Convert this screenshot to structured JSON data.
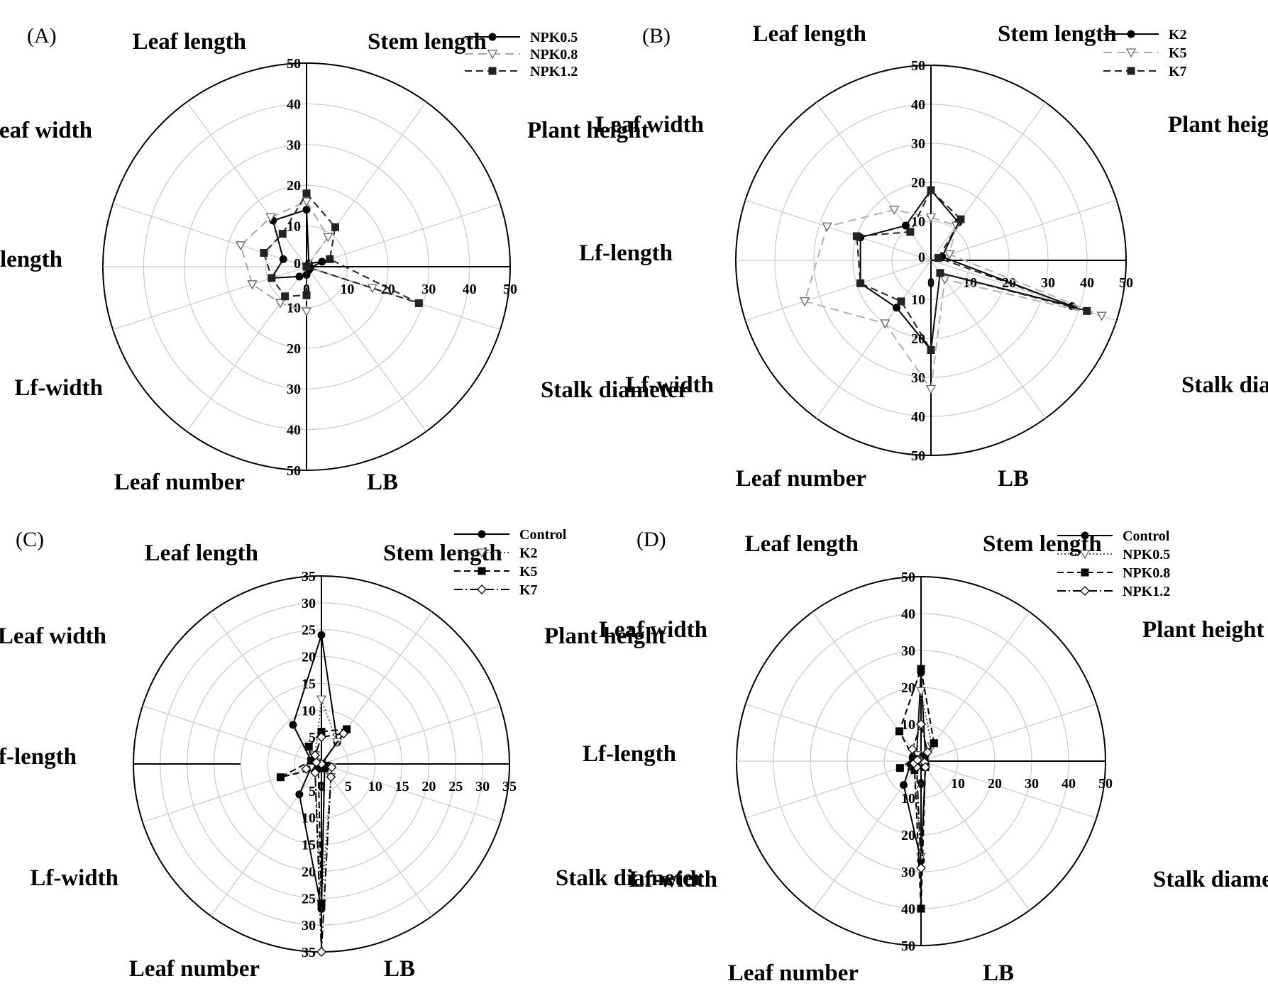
{
  "chart_data": [
    {
      "type": "radar",
      "panel_label": "(A)",
      "axes": [
        "Stem length",
        "Plant height",
        "",
        "Stalk diameter",
        "LB",
        "Leaf number",
        "Lf-width",
        "Lf-length",
        "Leaf width",
        "Leaf length"
      ],
      "tick_labels": [
        "0",
        "10",
        "20",
        "30",
        "40",
        "50"
      ],
      "max": 50,
      "legend": [
        "NPK0.5",
        "NPK0.8",
        "NPK1.2"
      ],
      "series": [
        {
          "name": "NPK0.5",
          "values": [
            14,
            1,
            4,
            1,
            1,
            2,
            3,
            9,
            6,
            14
          ]
        },
        {
          "name": "NPK0.8",
          "values": [
            16,
            9,
            0,
            17,
            0,
            11,
            11,
            14,
            17,
            15
          ]
        },
        {
          "name": "NPK1.2",
          "values": [
            18,
            12,
            6,
            29,
            0,
            7,
            9,
            9,
            11,
            10
          ]
        }
      ]
    },
    {
      "type": "radar",
      "panel_label": "(B)",
      "axes": [
        "Stem length",
        "Plant height",
        "",
        "Stalk diameter",
        "LB",
        "Leaf number",
        "Lf-width",
        "Lf-length",
        "Leaf width",
        "Leaf length"
      ],
      "tick_labels": [
        "0",
        "10",
        "20",
        "30",
        "40",
        "50"
      ],
      "max": 50,
      "legend": [
        "K2",
        "K5",
        "K7"
      ],
      "series": [
        {
          "name": "K2",
          "values": [
            18,
            12,
            3,
            38,
            4,
            23,
            15,
            19,
            19,
            11
          ]
        },
        {
          "name": "K5",
          "values": [
            11,
            11,
            5,
            46,
            6,
            33,
            20,
            34,
            28,
            16
          ]
        },
        {
          "name": "K7",
          "values": [
            18,
            13,
            2,
            42,
            4,
            23,
            13,
            19,
            20,
            9
          ]
        }
      ]
    },
    {
      "type": "radar",
      "panel_label": "(C)",
      "axes": [
        "Stem length",
        "Plant height",
        "",
        "Stalk diameter",
        "LB",
        "Leaf number",
        "Lf-width",
        "Lf-length",
        "Leaf width",
        "Leaf length"
      ],
      "tick_labels": [
        "0",
        "5",
        "10",
        "15",
        "20",
        "25",
        "30",
        "35"
      ],
      "max": 35,
      "legend": [
        "Control",
        "K2",
        "K5",
        "K7"
      ],
      "series": [
        {
          "name": "Control",
          "values": [
            24,
            5,
            0,
            0,
            1,
            27,
            7,
            2,
            2,
            9
          ]
        },
        {
          "name": "K2",
          "values": [
            12,
            5,
            0,
            2,
            3,
            26,
            2,
            2,
            1,
            2
          ]
        },
        {
          "name": "K5",
          "values": [
            6,
            8,
            0,
            1,
            1,
            26,
            1,
            8,
            2,
            4
          ]
        },
        {
          "name": "K7",
          "values": [
            5,
            7,
            0,
            2,
            3,
            35,
            2,
            3,
            1,
            2
          ]
        }
      ]
    },
    {
      "type": "radar",
      "panel_label": "(D)",
      "axes": [
        "Stem length",
        "Plant height",
        "",
        "Stalk diameter",
        "LB",
        "Leaf number",
        "Lf-width",
        "Lf-length",
        "Leaf width",
        "Leaf length"
      ],
      "tick_labels": [
        "0",
        "10",
        "20",
        "30",
        "40",
        "50"
      ],
      "max": 50,
      "legend": [
        "Control",
        "NPK0.5",
        "NPK0.8",
        "NPK1.2"
      ],
      "series": [
        {
          "name": "Control",
          "values": [
            24,
            2,
            0,
            1,
            2,
            27,
            8,
            3,
            1,
            2
          ]
        },
        {
          "name": "NPK0.5",
          "values": [
            19,
            5,
            0,
            1,
            2,
            26,
            3,
            2,
            1,
            2
          ]
        },
        {
          "name": "NPK0.8",
          "values": [
            25,
            6,
            0,
            1,
            2,
            40,
            3,
            6,
            2,
            10
          ]
        },
        {
          "name": "NPK1.2",
          "values": [
            10,
            3,
            0,
            1,
            2,
            29,
            2,
            2,
            1,
            4
          ]
        }
      ]
    }
  ]
}
